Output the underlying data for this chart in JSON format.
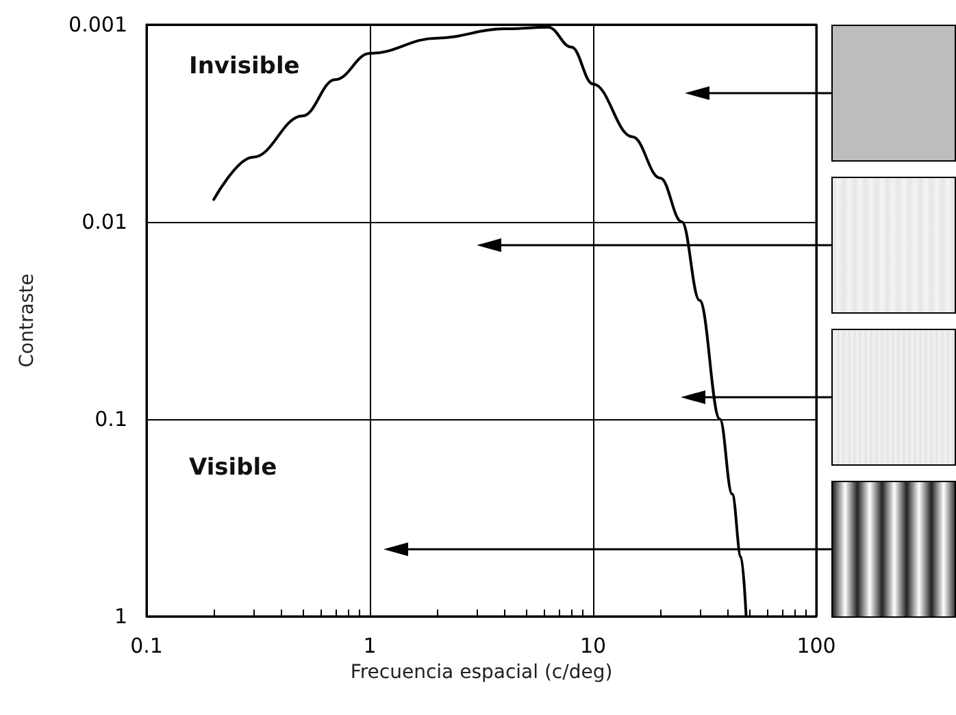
{
  "chart_data": {
    "type": "line",
    "xlabel": "Frecuencia espacial (c/deg)",
    "ylabel": "Contraste",
    "log": "xy",
    "grid": true,
    "marker": "none",
    "line_style": "solid",
    "annotations": [
      "Invisible",
      "Visible"
    ],
    "xlim": [
      0.1,
      100
    ],
    "xticks": [
      0.1,
      1,
      10,
      100
    ],
    "ylim": [
      1,
      0.001
    ],
    "yticks": [
      0.001,
      0.01,
      0.1,
      1
    ],
    "series": [
      {
        "color": "#000000",
        "x": [
          0.2,
          0.3,
          0.5,
          0.7,
          1,
          2,
          4,
          6.3,
          8,
          10,
          15,
          20,
          25,
          30,
          37,
          42,
          46,
          48.5
        ],
        "values": [
          0.0077,
          0.0047,
          0.0029,
          0.0019,
          0.0014,
          0.00117,
          0.00105,
          0.00103,
          0.0013,
          0.002,
          0.0037,
          0.006,
          0.01,
          0.025,
          0.1,
          0.24,
          0.5,
          1
        ]
      }
    ]
  }
}
